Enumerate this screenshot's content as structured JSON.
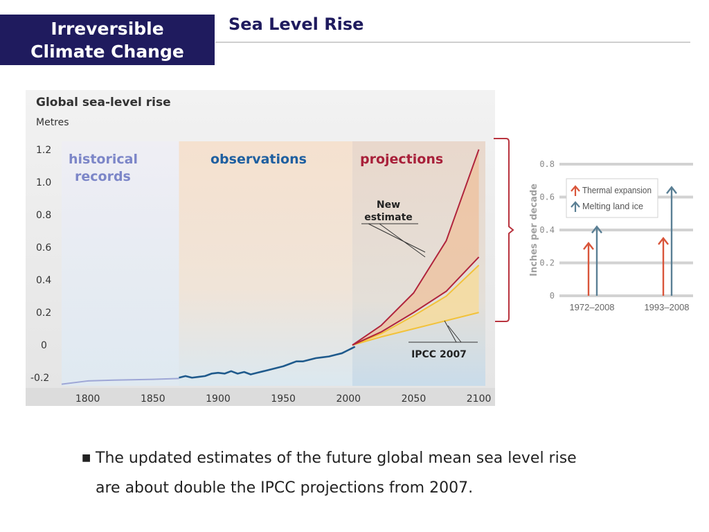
{
  "header": {
    "section_line1": "Irreversible",
    "section_line2": "Climate Change",
    "title": "Sea Level Rise"
  },
  "caption": {
    "bullet": "■",
    "line1": "The updated estimates of the future global mean sea level rise",
    "line2": "are about double the IPCC projections from 2007."
  },
  "chart_data": [
    {
      "type": "line",
      "title": "Global sea-level rise",
      "ylabel": "Metres",
      "xlim": [
        1780,
        2105
      ],
      "ylim": [
        -0.25,
        1.25
      ],
      "xticks": [
        1800,
        1850,
        1900,
        1950,
        2000,
        2050,
        2100
      ],
      "xtick_labels": [
        "1800",
        "1850",
        "1900",
        "1950",
        "2000",
        "2050",
        "2100"
      ],
      "yticks": [
        1.2,
        1.0,
        0.8,
        0.6,
        0.4,
        0.2,
        0,
        -0.2
      ],
      "ytick_labels": [
        "1.2",
        "1.0",
        "0.8",
        "0.6",
        "0.4",
        "0.2",
        "0",
        "-0.2"
      ],
      "regions": [
        {
          "name": "historical records",
          "label_line1": "historical",
          "label_line2": "records",
          "x_start": 1780,
          "x_end": 1870,
          "color": "#7c86c8"
        },
        {
          "name": "observations",
          "label_line1": "observations",
          "label_line2": "",
          "x_start": 1870,
          "x_end": 2003,
          "color": "#1e5fa0"
        },
        {
          "name": "projections",
          "label_line1": "projections",
          "label_line2": "",
          "x_start": 2003,
          "x_end": 2105,
          "color": "#a8203a"
        }
      ],
      "series": [
        {
          "name": "historical records",
          "color": "#9ea6d6",
          "x": [
            1780,
            1800,
            1820,
            1850,
            1870
          ],
          "y": [
            -0.24,
            -0.22,
            -0.215,
            -0.21,
            -0.205
          ]
        },
        {
          "name": "observations",
          "color": "#1f5a8c",
          "x": [
            1870,
            1875,
            1880,
            1885,
            1890,
            1895,
            1900,
            1905,
            1910,
            1915,
            1920,
            1925,
            1930,
            1935,
            1940,
            1945,
            1950,
            1955,
            1960,
            1965,
            1970,
            1975,
            1980,
            1985,
            1990,
            1995,
            2000,
            2005
          ],
          "y": [
            -0.2,
            -0.19,
            -0.2,
            -0.195,
            -0.19,
            -0.175,
            -0.17,
            -0.175,
            -0.16,
            -0.175,
            -0.165,
            -0.18,
            -0.17,
            -0.16,
            -0.15,
            -0.14,
            -0.13,
            -0.115,
            -0.1,
            -0.1,
            -0.09,
            -0.08,
            -0.075,
            -0.07,
            -0.06,
            -0.05,
            -0.03,
            -0.01
          ]
        },
        {
          "name": "New estimate (upper)",
          "color": "#b0243c",
          "x": [
            2003,
            2025,
            2050,
            2075,
            2100
          ],
          "y": [
            0,
            0.12,
            0.32,
            0.64,
            1.2
          ]
        },
        {
          "name": "New estimate (lower)",
          "color": "#b0243c",
          "x": [
            2003,
            2025,
            2050,
            2075,
            2100
          ],
          "y": [
            0,
            0.08,
            0.2,
            0.33,
            0.54
          ]
        },
        {
          "name": "IPCC 2007 (upper)",
          "color": "#f2c23a",
          "x": [
            2003,
            2025,
            2050,
            2075,
            2100
          ],
          "y": [
            0,
            0.07,
            0.18,
            0.3,
            0.49
          ]
        },
        {
          "name": "IPCC 2007 (lower)",
          "color": "#f2c23a",
          "x": [
            2003,
            2025,
            2050,
            2075,
            2100
          ],
          "y": [
            0,
            0.05,
            0.1,
            0.15,
            0.2
          ]
        }
      ],
      "annotations": [
        {
          "text_line1": "New",
          "text_line2": "estimate",
          "target": "New estimate"
        },
        {
          "text_line1": "IPCC 2007",
          "text_line2": "",
          "target": "IPCC 2007"
        }
      ]
    },
    {
      "type": "bar",
      "ylabel": "Inches per decade",
      "ylim": [
        0,
        0.8
      ],
      "yticks": [
        0.8,
        0.6,
        0.4,
        0.2,
        0
      ],
      "ytick_labels": [
        "0.8",
        "0.6",
        "0.4",
        "0.2",
        "0"
      ],
      "categories": [
        "1972–2008",
        "1993–2008"
      ],
      "series": [
        {
          "name": "Thermal expansion",
          "color": "#d9553a",
          "values": [
            0.32,
            0.35
          ]
        },
        {
          "name": "Melting land ice",
          "color": "#5a7f94",
          "values": [
            0.42,
            0.66
          ]
        }
      ],
      "legend": "top"
    }
  ]
}
